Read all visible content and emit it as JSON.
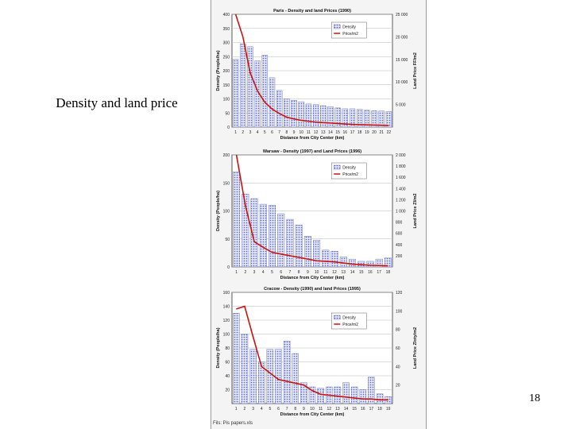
{
  "slide": {
    "caption": "Density and land price",
    "page_number": "18",
    "source_note": "Fils: Pis papers.xls"
  },
  "chart_data": [
    {
      "type": "bar",
      "title": "Paris - Density and land Prices (1990)",
      "xlabel": "Distance from City Center (km)",
      "ylabel": "Density (People/ha)",
      "y2label": "Land Price FF/m2",
      "categories": [
        "1",
        "2",
        "3",
        "4",
        "5",
        "6",
        "7",
        "8",
        "9",
        "10",
        "11",
        "12",
        "13",
        "14",
        "15",
        "16",
        "17",
        "18",
        "19",
        "20",
        "21",
        "22"
      ],
      "ylim": [
        0,
        400
      ],
      "yticks": [
        0,
        50,
        100,
        150,
        200,
        250,
        300,
        350,
        400
      ],
      "y2lim": [
        0,
        25000
      ],
      "y2ticks": [
        "",
        "5 000",
        "10 000",
        "15 000",
        "20 000",
        "25 000"
      ],
      "legend": [
        "Density",
        "Price/m2"
      ],
      "legend_position": "top-right",
      "series": [
        {
          "name": "Density",
          "values": [
            240,
            295,
            285,
            235,
            255,
            175,
            130,
            100,
            95,
            90,
            82,
            80,
            76,
            73,
            68,
            65,
            65,
            63,
            60,
            58,
            57,
            55
          ]
        },
        {
          "name": "Price/m2",
          "values": [
            25000,
            20000,
            12000,
            8000,
            5500,
            4000,
            3000,
            2200,
            1800,
            1500,
            1300,
            1100,
            1000,
            900,
            800,
            700,
            600,
            550,
            500,
            450,
            400,
            350
          ]
        }
      ]
    },
    {
      "type": "bar",
      "title": "Warsaw - Density (1997) and Land Prices (1996)",
      "xlabel": "Distance from City Center (km)",
      "ylabel": "Density (People/ha)",
      "y2label": "Land Price Zl/m2",
      "categories": [
        "1",
        "2",
        "3",
        "4",
        "5",
        "6",
        "7",
        "8",
        "9",
        "10",
        "11",
        "12",
        "13",
        "14",
        "15",
        "16",
        "17",
        "18"
      ],
      "ylim": [
        0,
        200
      ],
      "yticks": [
        0,
        50,
        100,
        150,
        200
      ],
      "y2lim": [
        0,
        2000
      ],
      "y2ticks": [
        "",
        "200",
        "400",
        "600",
        "800",
        "1 000",
        "1 200",
        "1 400",
        "1 600",
        "1 800",
        "2 000"
      ],
      "legend": [
        "Density",
        "Price/m2"
      ],
      "legend_position": "top-right",
      "series": [
        {
          "name": "Density",
          "values": [
            170,
            130,
            122,
            112,
            110,
            95,
            85,
            75,
            55,
            48,
            30,
            28,
            18,
            14,
            10,
            10,
            14,
            16
          ]
        },
        {
          "name": "Price/m2",
          "values": [
            2000,
            1100,
            450,
            350,
            260,
            230,
            200,
            170,
            140,
            110,
            100,
            90,
            70,
            50,
            40,
            30,
            25,
            20
          ]
        }
      ]
    },
    {
      "type": "bar",
      "title": "Cracow - Density (1990) and land Prices (1995)",
      "xlabel": "Distance from City Center (km)",
      "ylabel": "Density (People/ha)",
      "y2label": "Land Price Zloty/m2",
      "categories": [
        "1",
        "2",
        "3",
        "4",
        "5",
        "6",
        "7",
        "8",
        "9",
        "10",
        "11",
        "12",
        "13",
        "14",
        "15",
        "16",
        "17",
        "18",
        "19"
      ],
      "ylim": [
        0,
        160
      ],
      "yticks": [
        20,
        40,
        60,
        80,
        100,
        120,
        140,
        160
      ],
      "y2lim": [
        0,
        120
      ],
      "y2ticks": [
        "20",
        "40",
        "60",
        "80",
        "100",
        "120"
      ],
      "legend": [
        "Density",
        "Price/m2"
      ],
      "legend_position": "top-right",
      "series": [
        {
          "name": "Density",
          "values": [
            130,
            100,
            78,
            60,
            78,
            78,
            90,
            72,
            30,
            24,
            22,
            24,
            24,
            30,
            24,
            20,
            38,
            14,
            10
          ]
        },
        {
          "name": "Price/m2",
          "values": [
            102,
            105,
            72,
            40,
            33,
            26,
            24,
            22,
            20,
            14,
            10,
            9,
            8,
            7,
            6,
            5,
            5,
            4,
            4
          ]
        }
      ]
    }
  ]
}
